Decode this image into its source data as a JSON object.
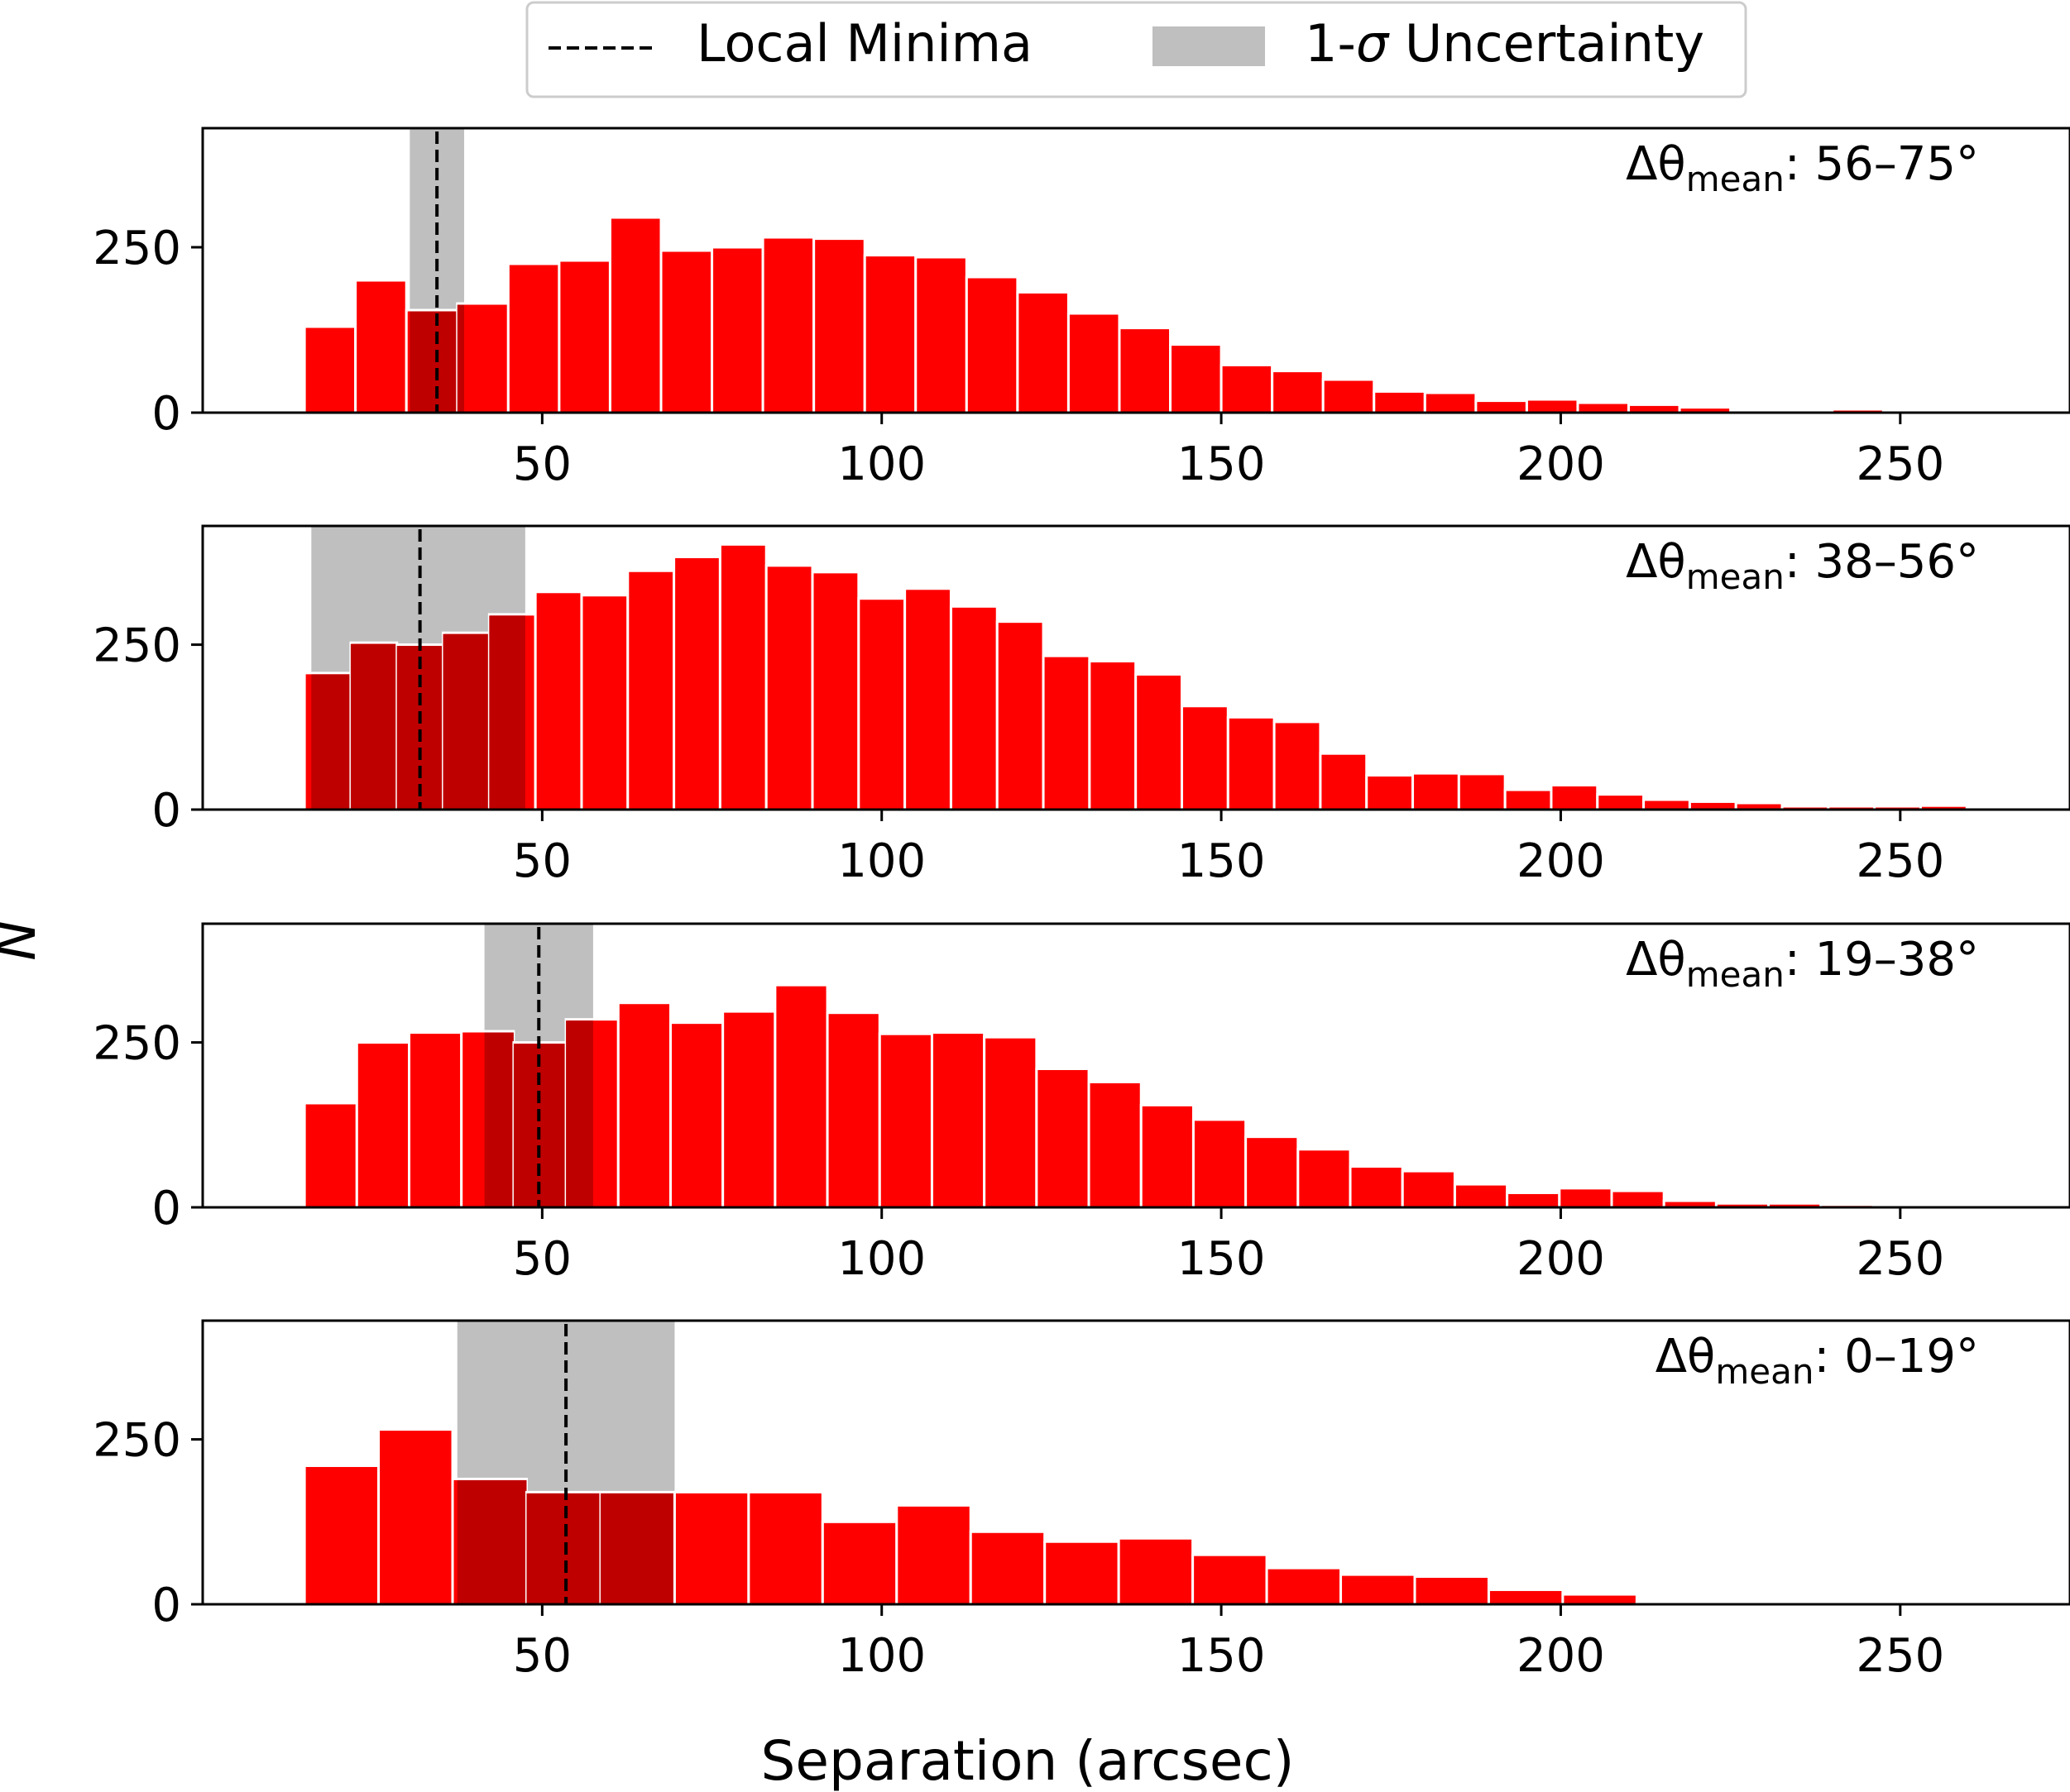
{
  "figure": {
    "xlabel": "Separation (arcsec)",
    "ylabel": "N",
    "legend": {
      "placement": "top-center",
      "entries": [
        {
          "label": "Local Minima",
          "style": "dashed-line",
          "color": "#000000"
        },
        {
          "label_prefix": "1-",
          "label_symbol": "σ",
          "label_suffix": " Uncertainty",
          "label": "1-σ Uncertainty",
          "style": "patch",
          "color": "#bfbfbf"
        }
      ]
    },
    "colors": {
      "bar": "#ff0000",
      "bar_overlap": "#bf0000",
      "band": "#bfbfbf",
      "minimum_line": "#000000"
    }
  },
  "chart_data": [
    {
      "type": "bar",
      "annotation": {
        "prefix": "Δθ",
        "sub": "mean",
        "suffix": ": 56–75°"
      },
      "bin_width": 7.5,
      "bin_start": 15,
      "values": [
        130,
        200,
        155,
        165,
        225,
        230,
        295,
        245,
        250,
        265,
        263,
        238,
        235,
        205,
        182,
        150,
        128,
        103,
        72,
        63,
        50,
        32,
        30,
        18,
        20,
        15,
        12,
        8,
        0,
        0,
        5,
        0,
        3
      ],
      "local_minimum": 34.5,
      "uncertainty": [
        30.5,
        38.5
      ],
      "xlim": [
        0,
        275
      ],
      "ylim": [
        0,
        430
      ],
      "xticks": [
        50,
        100,
        150,
        200,
        250
      ],
      "yticks": [
        0,
        250
      ]
    },
    {
      "type": "bar",
      "annotation": {
        "prefix": "Δθ",
        "sub": "mean",
        "suffix": ": 38–56°"
      },
      "bin_width": 6.8,
      "bin_start": 15,
      "values": [
        207,
        253,
        250,
        268,
        296,
        330,
        325,
        362,
        383,
        402,
        370,
        360,
        320,
        335,
        308,
        285,
        233,
        225,
        205,
        157,
        140,
        133,
        85,
        52,
        55,
        54,
        30,
        37,
        23,
        15,
        12,
        10,
        5,
        5,
        5,
        6
      ],
      "local_minimum": 32.0,
      "uncertainty": [
        16.0,
        47.5
      ],
      "xlim": [
        0,
        275
      ],
      "ylim": [
        0,
        430
      ],
      "xticks": [
        50,
        100,
        150,
        200,
        250
      ],
      "yticks": [
        0,
        250
      ]
    },
    {
      "type": "bar",
      "annotation": {
        "prefix": "Δθ",
        "sub": "mean",
        "suffix": ": 19–38°"
      },
      "bin_width": 7.7,
      "bin_start": 15,
      "values": [
        158,
        250,
        265,
        267,
        250,
        285,
        310,
        280,
        297,
        337,
        295,
        263,
        265,
        258,
        210,
        190,
        155,
        133,
        107,
        88,
        62,
        55,
        35,
        22,
        29,
        25,
        10,
        6,
        6,
        4
      ],
      "local_minimum": 49.5,
      "uncertainty": [
        41.5,
        57.5
      ],
      "xlim": [
        0,
        275
      ],
      "ylim": [
        0,
        430
      ],
      "xticks": [
        50,
        100,
        150,
        200,
        250
      ],
      "yticks": [
        0,
        250
      ]
    },
    {
      "type": "bar",
      "annotation": {
        "prefix": "Δθ",
        "sub": "mean",
        "suffix": ": 0–19°"
      },
      "bin_width": 10.9,
      "bin_start": 15,
      "values": [
        210,
        265,
        190,
        170,
        170,
        170,
        170,
        125,
        150,
        110,
        95,
        100,
        75,
        55,
        45,
        42,
        22,
        15,
        2
      ],
      "local_minimum": 53.5,
      "uncertainty": [
        37.5,
        69.5
      ],
      "xlim": [
        0,
        275
      ],
      "ylim": [
        0,
        430
      ],
      "xticks": [
        50,
        100,
        150,
        200,
        250
      ],
      "yticks": [
        0,
        250
      ]
    }
  ]
}
